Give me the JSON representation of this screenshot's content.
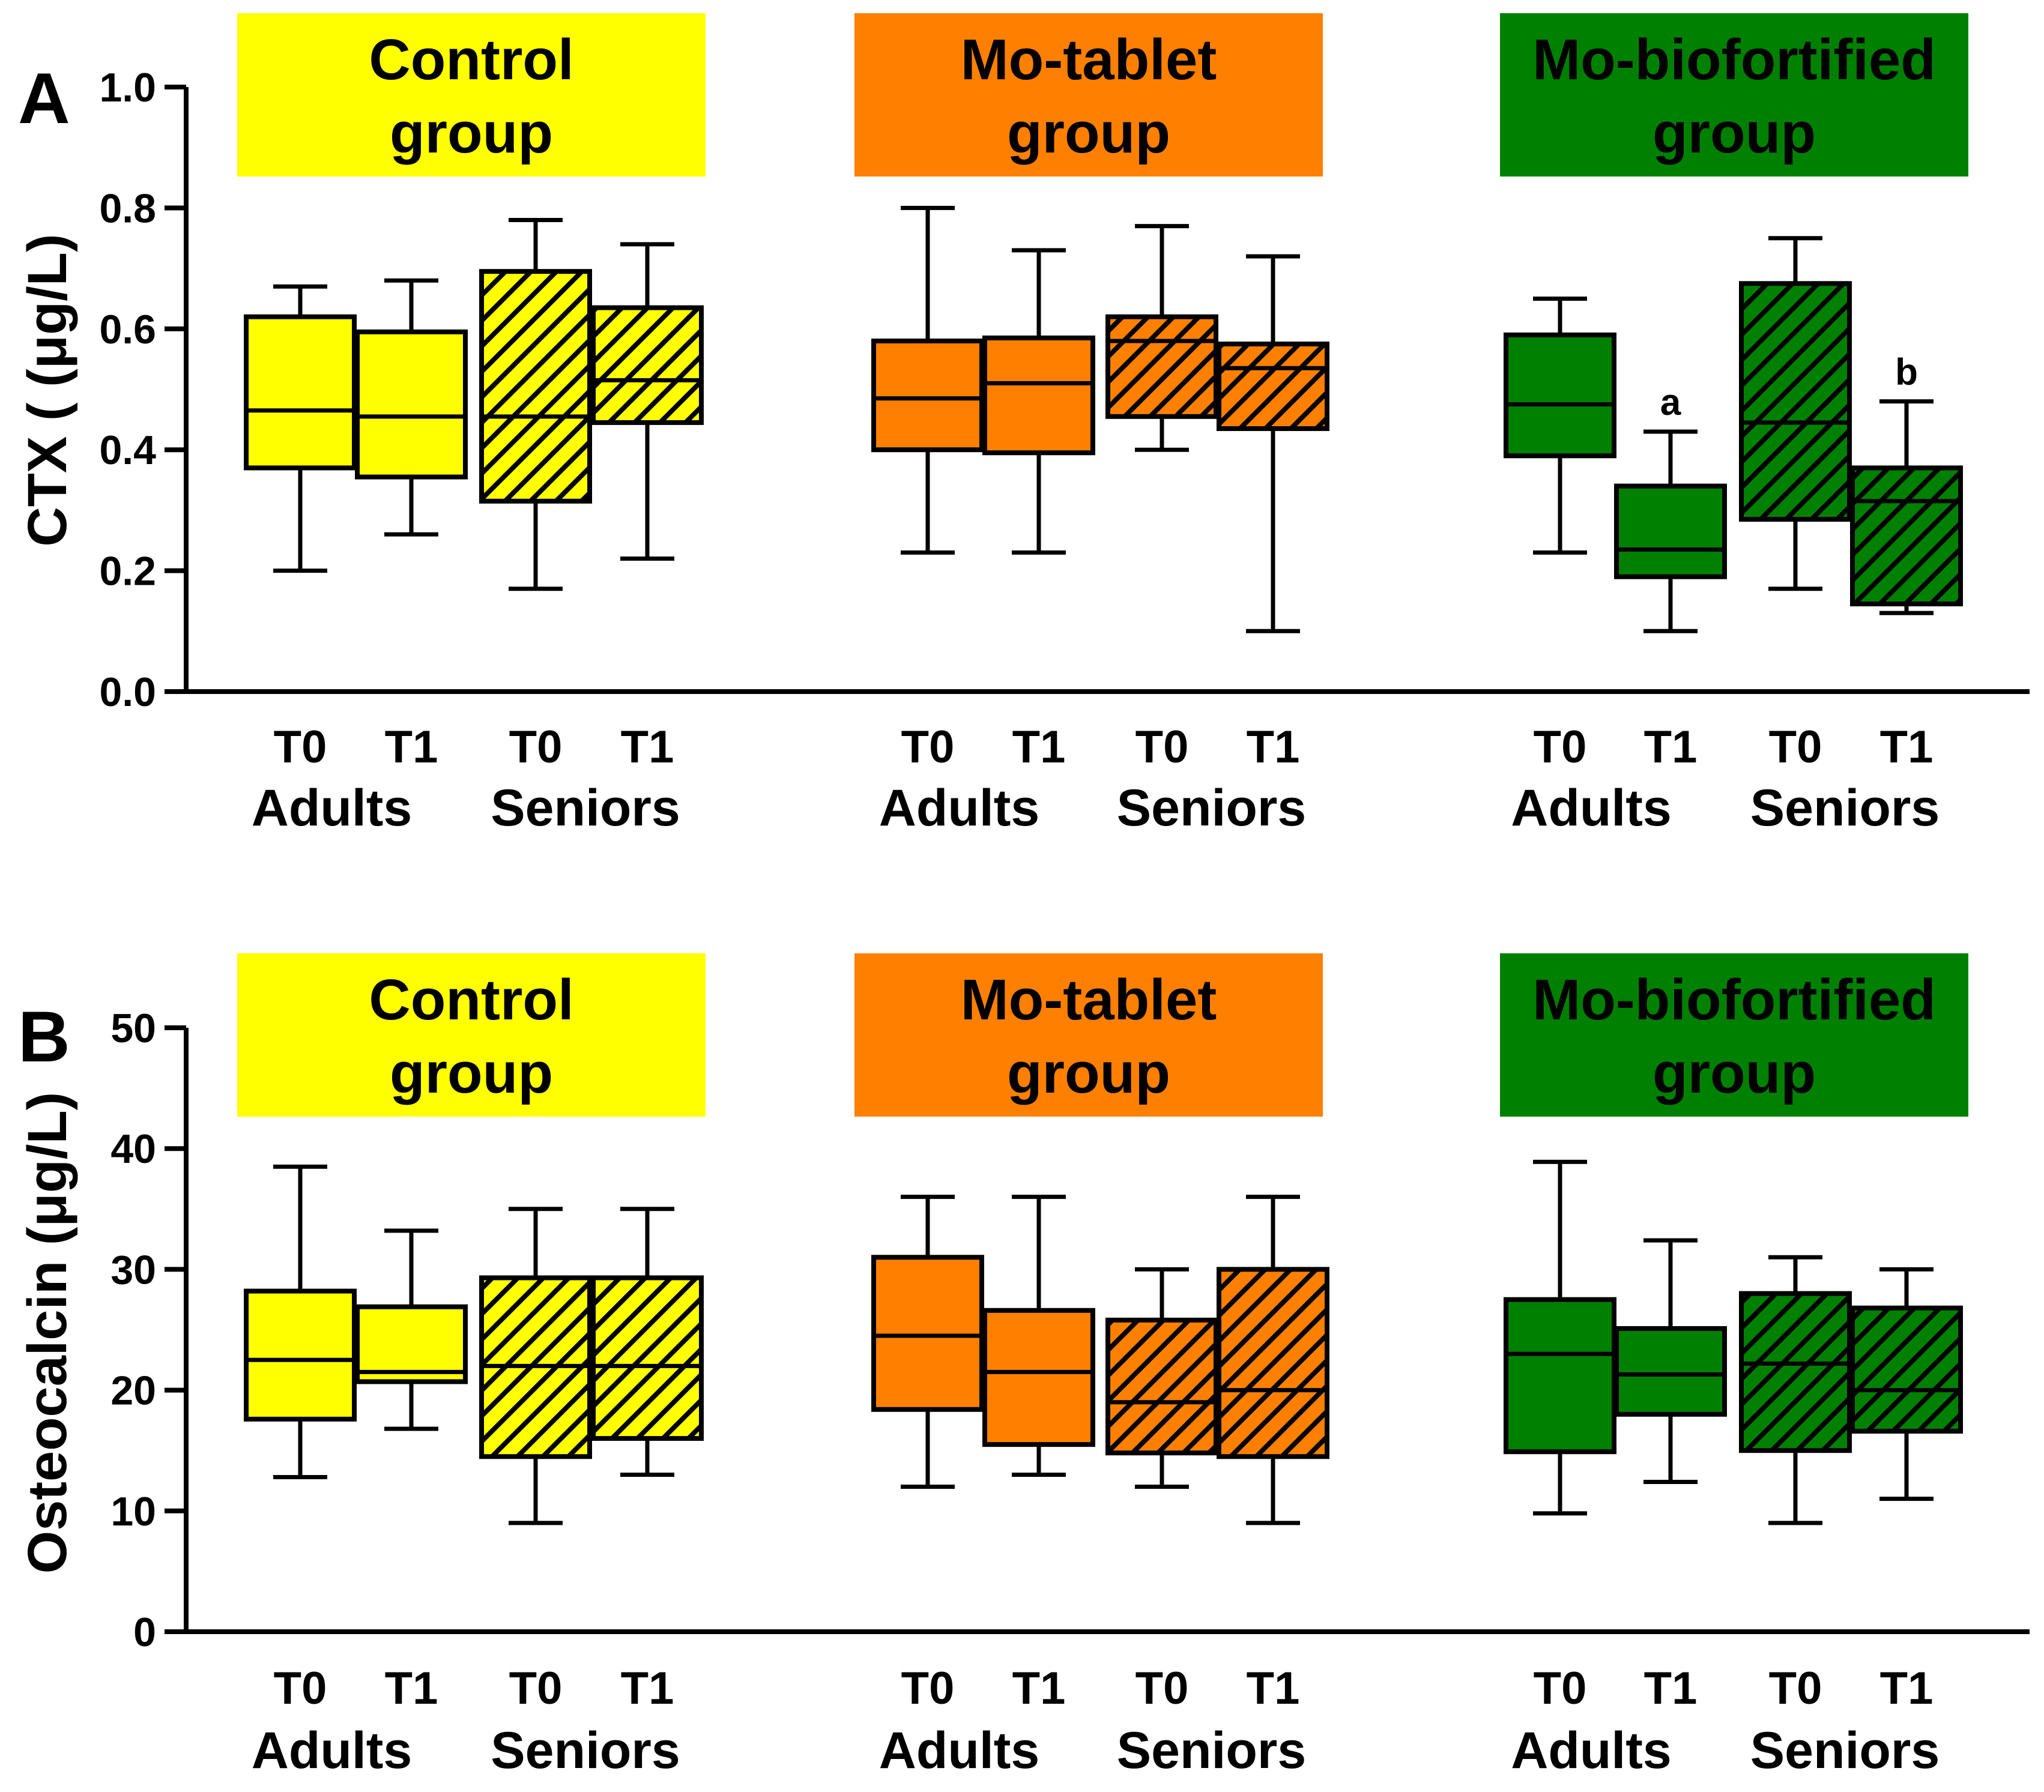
{
  "chart_data": [
    {
      "type": "box",
      "panel_label": "A",
      "ylabel": "CTX ( (μg/L)",
      "ylim": [
        0,
        1.0
      ],
      "yticks": [
        "0.0",
        "0.2",
        "0.4",
        "0.6",
        "0.8",
        "1.0"
      ],
      "ytick_values": [
        0,
        0.2,
        0.4,
        0.6,
        0.8,
        1.0
      ],
      "groups": [
        {
          "title_line1": "Control",
          "title_line2": "group",
          "color": "#FFFF00",
          "subgroups": [
            {
              "name": "Adults",
              "boxes": [
                {
                  "time": "T0",
                  "hatched": false,
                  "min": 0.2,
                  "q1": 0.37,
                  "median": 0.465,
                  "q3": 0.62,
                  "max": 0.67
                },
                {
                  "time": "T1",
                  "hatched": false,
                  "min": 0.26,
                  "q1": 0.355,
                  "median": 0.455,
                  "q3": 0.595,
                  "max": 0.68
                }
              ]
            },
            {
              "name": "Seniors",
              "boxes": [
                {
                  "time": "T0",
                  "hatched": true,
                  "min": 0.17,
                  "q1": 0.315,
                  "median": 0.455,
                  "q3": 0.695,
                  "max": 0.78
                },
                {
                  "time": "T1",
                  "hatched": true,
                  "min": 0.22,
                  "q1": 0.445,
                  "median": 0.515,
                  "q3": 0.635,
                  "max": 0.74
                }
              ]
            }
          ]
        },
        {
          "title_line1": "Mo-tablet",
          "title_line2": "group",
          "color": "#FF8000",
          "subgroups": [
            {
              "name": "Adults",
              "boxes": [
                {
                  "time": "T0",
                  "hatched": false,
                  "min": 0.23,
                  "q1": 0.4,
                  "median": 0.485,
                  "q3": 0.58,
                  "max": 0.8
                },
                {
                  "time": "T1",
                  "hatched": false,
                  "min": 0.23,
                  "q1": 0.395,
                  "median": 0.51,
                  "q3": 0.585,
                  "max": 0.73
                }
              ]
            },
            {
              "name": "Seniors",
              "boxes": [
                {
                  "time": "T0",
                  "hatched": true,
                  "min": 0.4,
                  "q1": 0.455,
                  "median": 0.58,
                  "q3": 0.62,
                  "max": 0.77
                },
                {
                  "time": "T1",
                  "hatched": true,
                  "min": 0.1,
                  "q1": 0.435,
                  "median": 0.535,
                  "q3": 0.575,
                  "max": 0.72
                }
              ]
            }
          ]
        },
        {
          "title_line1": "Mo-biofortified",
          "title_line2": "group",
          "color": "#008000",
          "subgroups": [
            {
              "name": "Adults",
              "boxes": [
                {
                  "time": "T0",
                  "hatched": false,
                  "min": 0.23,
                  "q1": 0.39,
                  "median": 0.475,
                  "q3": 0.59,
                  "max": 0.65
                },
                {
                  "time": "T1",
                  "hatched": false,
                  "min": 0.1,
                  "q1": 0.19,
                  "median": 0.235,
                  "q3": 0.34,
                  "max": 0.43,
                  "annotation": "a"
                }
              ]
            },
            {
              "name": "Seniors",
              "boxes": [
                {
                  "time": "T0",
                  "hatched": true,
                  "min": 0.17,
                  "q1": 0.285,
                  "median": 0.445,
                  "q3": 0.675,
                  "max": 0.75
                },
                {
                  "time": "T1",
                  "hatched": true,
                  "min": 0.13,
                  "q1": 0.145,
                  "median": 0.315,
                  "q3": 0.37,
                  "max": 0.48,
                  "annotation": "b"
                }
              ]
            }
          ]
        }
      ]
    },
    {
      "type": "box",
      "panel_label": "B",
      "ylabel": "Osteocalcin (μg/L)",
      "ylim": [
        0,
        50
      ],
      "yticks": [
        "0",
        "10",
        "20",
        "30",
        "40",
        "50"
      ],
      "ytick_values": [
        0,
        10,
        20,
        30,
        40,
        50
      ],
      "groups": [
        {
          "title_line1": "Control",
          "title_line2": "group",
          "color": "#FFFF00",
          "subgroups": [
            {
              "name": "Adults",
              "boxes": [
                {
                  "time": "T0",
                  "hatched": false,
                  "min": 12.8,
                  "q1": 17.6,
                  "median": 22.5,
                  "q3": 28.2,
                  "max": 38.5
                },
                {
                  "time": "T1",
                  "hatched": false,
                  "min": 16.8,
                  "q1": 20.7,
                  "median": 21.5,
                  "q3": 26.9,
                  "max": 33.2
                }
              ]
            },
            {
              "name": "Seniors",
              "boxes": [
                {
                  "time": "T0",
                  "hatched": true,
                  "min": 9.0,
                  "q1": 14.5,
                  "median": 22.0,
                  "q3": 29.3,
                  "max": 35.0
                },
                {
                  "time": "T1",
                  "hatched": true,
                  "min": 13.0,
                  "q1": 16.0,
                  "median": 22.0,
                  "q3": 29.3,
                  "max": 35.0
                }
              ]
            }
          ]
        },
        {
          "title_line1": "Mo-tablet",
          "title_line2": "group",
          "color": "#FF8000",
          "subgroups": [
            {
              "name": "Adults",
              "boxes": [
                {
                  "time": "T0",
                  "hatched": false,
                  "min": 12.0,
                  "q1": 18.4,
                  "median": 24.5,
                  "q3": 31.0,
                  "max": 36.0
                },
                {
                  "time": "T1",
                  "hatched": false,
                  "min": 13.0,
                  "q1": 15.5,
                  "median": 21.5,
                  "q3": 26.6,
                  "max": 36.0
                }
              ]
            },
            {
              "name": "Seniors",
              "boxes": [
                {
                  "time": "T0",
                  "hatched": true,
                  "min": 12.0,
                  "q1": 14.8,
                  "median": 19.0,
                  "q3": 25.8,
                  "max": 30.0
                },
                {
                  "time": "T1",
                  "hatched": true,
                  "min": 9.0,
                  "q1": 14.5,
                  "median": 20.0,
                  "q3": 30.0,
                  "max": 36.0
                }
              ]
            }
          ]
        },
        {
          "title_line1": "Mo-biofortified",
          "title_line2": "group",
          "color": "#008000",
          "subgroups": [
            {
              "name": "Adults",
              "boxes": [
                {
                  "time": "T0",
                  "hatched": false,
                  "min": 9.8,
                  "q1": 14.9,
                  "median": 23.0,
                  "q3": 27.5,
                  "max": 38.9
                },
                {
                  "time": "T1",
                  "hatched": false,
                  "min": 12.4,
                  "q1": 18.0,
                  "median": 21.3,
                  "q3": 25.1,
                  "max": 32.4
                }
              ]
            },
            {
              "name": "Seniors",
              "boxes": [
                {
                  "time": "T0",
                  "hatched": true,
                  "min": 9.0,
                  "q1": 15.0,
                  "median": 22.2,
                  "q3": 28.0,
                  "max": 31.0
                },
                {
                  "time": "T1",
                  "hatched": true,
                  "min": 11.0,
                  "q1": 16.6,
                  "median": 20.0,
                  "q3": 26.8,
                  "max": 30.0
                }
              ]
            }
          ]
        }
      ]
    }
  ]
}
